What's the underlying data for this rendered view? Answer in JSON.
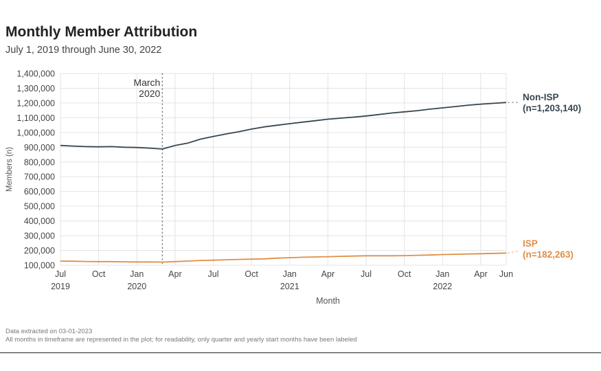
{
  "chart_data": {
    "type": "line",
    "title": "Monthly Member Attribution",
    "subtitle": "July 1, 2019 through June 30, 2022",
    "xlabel": "Month",
    "ylabel": "Members (n)",
    "ylim": [
      100000,
      1400000
    ],
    "yticks": [
      100000,
      200000,
      300000,
      400000,
      500000,
      600000,
      700000,
      800000,
      900000,
      1000000,
      1100000,
      1200000,
      1300000,
      1400000
    ],
    "ytick_labels": [
      "100,000",
      "200,000",
      "300,000",
      "400,000",
      "500,000",
      "600,000",
      "700,000",
      "800,000",
      "900,000",
      "1,000,000",
      "1,100,000",
      "1,200,000",
      "1,300,000",
      "1,400,000"
    ],
    "x": [
      "2019-07",
      "2019-08",
      "2019-09",
      "2019-10",
      "2019-11",
      "2019-12",
      "2020-01",
      "2020-02",
      "2020-03",
      "2020-04",
      "2020-05",
      "2020-06",
      "2020-07",
      "2020-08",
      "2020-09",
      "2020-10",
      "2020-11",
      "2020-12",
      "2021-01",
      "2021-02",
      "2021-03",
      "2021-04",
      "2021-05",
      "2021-06",
      "2021-07",
      "2021-08",
      "2021-09",
      "2021-10",
      "2021-11",
      "2021-12",
      "2022-01",
      "2022-02",
      "2022-03",
      "2022-04",
      "2022-05",
      "2022-06"
    ],
    "xticks": [
      {
        "month": "2019-07",
        "label": "Jul",
        "year": "2019"
      },
      {
        "month": "2019-10",
        "label": "Oct",
        "year": ""
      },
      {
        "month": "2020-01",
        "label": "Jan",
        "year": "2020"
      },
      {
        "month": "2020-04",
        "label": "Apr",
        "year": ""
      },
      {
        "month": "2020-07",
        "label": "Jul",
        "year": ""
      },
      {
        "month": "2020-10",
        "label": "Oct",
        "year": ""
      },
      {
        "month": "2021-01",
        "label": "Jan",
        "year": "2021"
      },
      {
        "month": "2021-04",
        "label": "Apr",
        "year": ""
      },
      {
        "month": "2021-07",
        "label": "Jul",
        "year": ""
      },
      {
        "month": "2021-10",
        "label": "Oct",
        "year": ""
      },
      {
        "month": "2022-01",
        "label": "Jan",
        "year": "2022"
      },
      {
        "month": "2022-04",
        "label": "Apr",
        "year": ""
      },
      {
        "month": "2022-06",
        "label": "Jun",
        "year": ""
      }
    ],
    "series": [
      {
        "name": "Non-ISP",
        "end_label": "(n=1,203,140)",
        "color": "#36454f",
        "values": [
          912000,
          908000,
          904000,
          903000,
          904000,
          900000,
          898000,
          894000,
          888000,
          912000,
          928000,
          955000,
          973000,
          990000,
          1005000,
          1023000,
          1038000,
          1049000,
          1060000,
          1070000,
          1080000,
          1090000,
          1097000,
          1104000,
          1112000,
          1122000,
          1132000,
          1140000,
          1148000,
          1158000,
          1167000,
          1176000,
          1185000,
          1192000,
          1198000,
          1203140
        ]
      },
      {
        "name": "ISP",
        "end_label": "(n=182,263)",
        "color": "#e08e45",
        "values": [
          128000,
          127000,
          125000,
          124000,
          124000,
          123000,
          122000,
          122000,
          121000,
          124000,
          128000,
          132000,
          134000,
          137000,
          139000,
          141000,
          143000,
          148000,
          151000,
          154000,
          156000,
          158000,
          160000,
          162000,
          164000,
          164000,
          164000,
          165000,
          167000,
          169000,
          172000,
          174000,
          176000,
          178000,
          180000,
          182263
        ]
      }
    ],
    "annotation": {
      "text_line1": "March",
      "text_line2": "2020",
      "month": "2020-03",
      "style": "dotted vertical line"
    },
    "grid": true,
    "legend": "direct labels at line ends, right"
  },
  "footnotes": {
    "line1": "Data extracted on 03-01-2023",
    "line2": "All months in timeframe are represented in the plot; for readability, only quarter and yearly start months have been labeled"
  }
}
